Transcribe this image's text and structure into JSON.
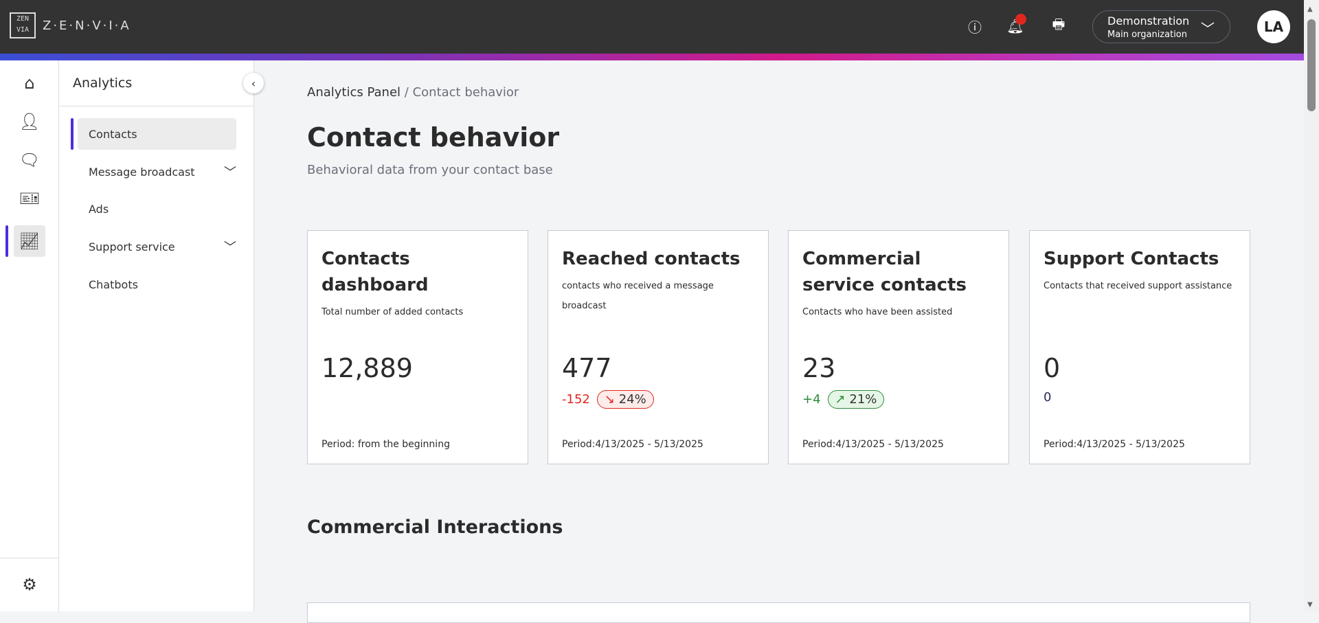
{
  "header": {
    "logo_text": "Z·E·N·V·I·A",
    "logo_mark": "ZEN VIA",
    "org_name": "Demonstration",
    "org_sub": "Main organization",
    "avatar": "LA",
    "icons": [
      "help-icon",
      "bell-icon",
      "printer-icon"
    ]
  },
  "rail": {
    "icons": [
      "home-icon",
      "person-icon",
      "chat-icon",
      "ticket-icon",
      "analytics-icon",
      "gear-icon"
    ]
  },
  "sidebar": {
    "title": "Analytics",
    "items": [
      {
        "label": "Contacts"
      },
      {
        "label": "Message broadcast"
      },
      {
        "label": "Ads"
      },
      {
        "label": "Support service"
      },
      {
        "label": "Chatbots"
      }
    ]
  },
  "breadcrumb": {
    "parent": "Analytics Panel",
    "sep": "/",
    "current": "Contact behavior"
  },
  "page": {
    "title": "Contact behavior",
    "subtitle": "Behavioral data from your contact base"
  },
  "cards": [
    {
      "title": "Contacts dashboard",
      "desc": "Total number of added contacts",
      "value": "12,889",
      "period": "Period: from the beginning"
    },
    {
      "title": "Reached contacts",
      "desc": "contacts who received a message broadcast",
      "value": "477",
      "delta": "-152",
      "pct": "24%",
      "arrow": "↘",
      "period": "Period:4/13/2025 - 5/13/2025"
    },
    {
      "title": "Commercial service contacts",
      "desc": "Contacts who have been assisted",
      "value": "23",
      "delta": "+4",
      "pct": "21%",
      "arrow": "↗",
      "period": "Period:4/13/2025 - 5/13/2025"
    },
    {
      "title": "Support Contacts",
      "desc": "Contacts that received support assistance",
      "value": "0",
      "delta": "0",
      "period": "Period:4/13/2025 - 5/13/2025"
    }
  ],
  "colors": {
    "negative": "#e0271e",
    "positive": "#2a8a3a",
    "accent": "#4b2ee0"
  },
  "section": {
    "title": "Commercial Interactions"
  }
}
